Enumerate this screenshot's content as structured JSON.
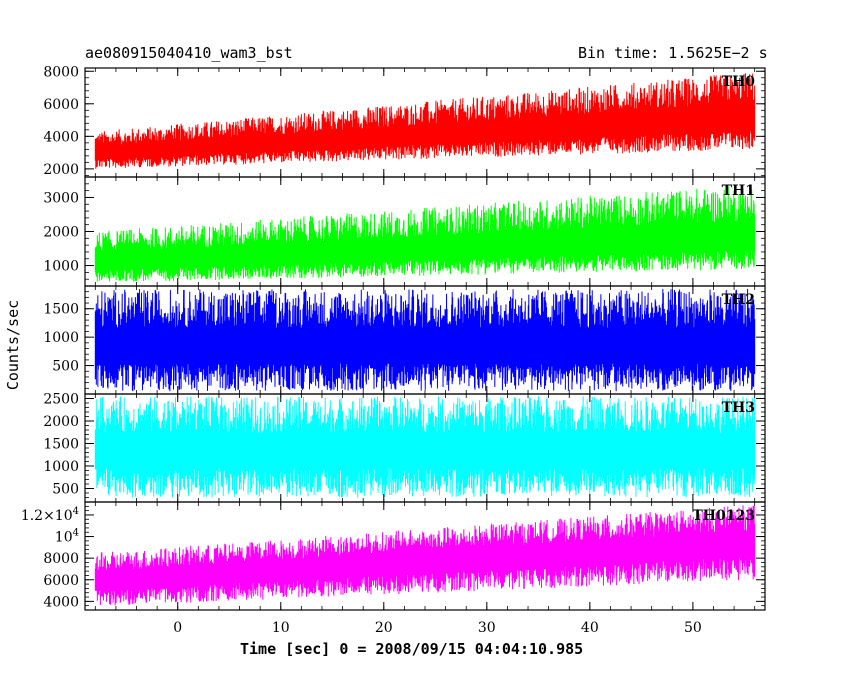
{
  "header": {
    "left_title": "ae080915040410_wam3_bst",
    "right_title": "Bin time: 1.5625E−2 s"
  },
  "axes": {
    "ylabel": "Counts/sec",
    "xlabel": "Time [sec] 0 = 2008/09/15 04:04:10.985"
  },
  "chart_data": {
    "type": "line",
    "xlim": [
      -9,
      57
    ],
    "x_data_range": [
      -8,
      56
    ],
    "bin_time_s": 0.015625,
    "x_ticks": [
      0,
      10,
      20,
      30,
      40,
      50
    ],
    "x_tick_labels": [
      "0",
      "10",
      "20",
      "30",
      "40",
      "50"
    ],
    "panels": [
      {
        "name": "TH0",
        "color": "#ff0000",
        "ylim": [
          1500,
          8200
        ],
        "ticks": [
          2000,
          4000,
          6000,
          8000
        ],
        "tick_labels": [
          "2000",
          "4000",
          "6000",
          "8000"
        ],
        "mean_start": 2900,
        "mean_end": 5000,
        "low_start": 2000,
        "low_end": 3200,
        "high_start": 4300,
        "high_end": 8000
      },
      {
        "name": "TH1",
        "color": "#00ff00",
        "ylim": [
          400,
          3600
        ],
        "ticks": [
          1000,
          2000,
          3000
        ],
        "tick_labels": [
          "1000",
          "2000",
          "3000"
        ],
        "mean_start": 1050,
        "mean_end": 1750,
        "low_start": 500,
        "low_end": 900,
        "high_start": 2000,
        "high_end": 3400
      },
      {
        "name": "TH2",
        "color": "#0000ff",
        "ylim": [
          0,
          1900
        ],
        "ticks": [
          500,
          1000,
          1500
        ],
        "tick_labels": [
          "500",
          "1000",
          "1500"
        ],
        "mean_start": 800,
        "mean_end": 800,
        "low_start": 50,
        "low_end": 50,
        "high_start": 1850,
        "high_end": 1850
      },
      {
        "name": "TH3",
        "color": "#00ffff",
        "ylim": [
          200,
          2600
        ],
        "ticks": [
          500,
          1000,
          1500,
          2000,
          2500
        ],
        "tick_labels": [
          "500",
          "1000",
          "1500",
          "2000",
          "2500"
        ],
        "mean_start": 1300,
        "mean_end": 1300,
        "low_start": 300,
        "low_end": 300,
        "high_start": 2550,
        "high_end": 2550
      },
      {
        "name": "TH0123",
        "color": "#ff00ff",
        "ylim": [
          3200,
          13200
        ],
        "ticks": [
          4000,
          6000,
          8000,
          10000,
          12000
        ],
        "tick_labels": [
          "4000",
          "6000",
          "8000",
          "10^4",
          "1.2×10^4"
        ],
        "mean_start": 5800,
        "mean_end": 9300,
        "low_start": 3500,
        "low_end": 6000,
        "high_start": 8500,
        "high_end": 13000
      }
    ]
  }
}
